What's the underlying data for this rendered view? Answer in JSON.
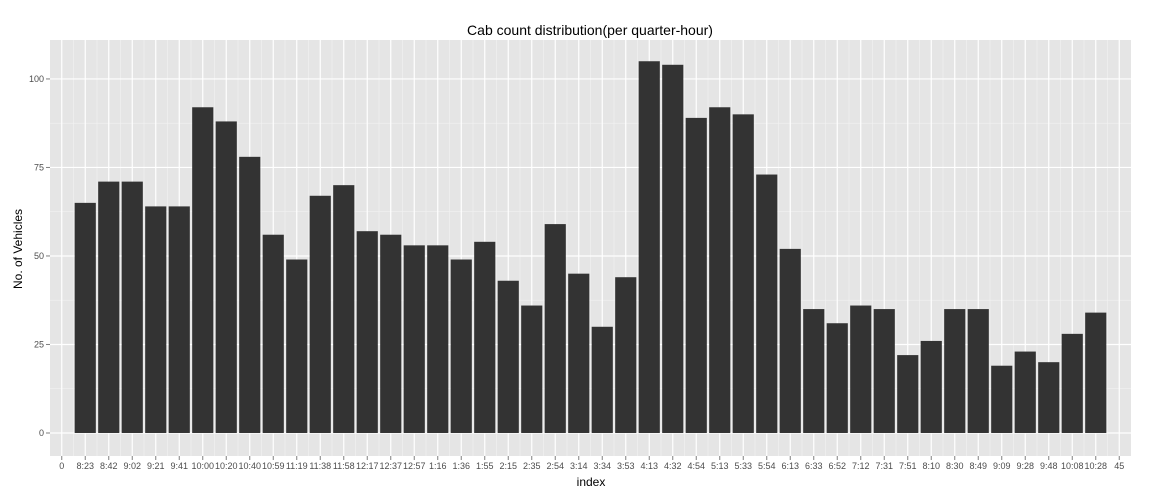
{
  "chart_data": {
    "type": "bar",
    "title": "Cab count distribution(per quarter-hour)",
    "xlabel": "index",
    "ylabel": "No. of Vehicles",
    "x_numeric_ticks": [
      "0",
      "45"
    ],
    "categories": [
      "8:23",
      "8:42",
      "9:02",
      "9:21",
      "9:41",
      "10:00",
      "10:20",
      "10:40",
      "10:59",
      "11:19",
      "11:38",
      "11:58",
      "12:17",
      "12:37",
      "12:57",
      "1:16",
      "1:36",
      "1:55",
      "2:15",
      "2:35",
      "2:54",
      "3:14",
      "3:34",
      "3:53",
      "4:13",
      "4:32",
      "4:54",
      "5:13",
      "5:33",
      "5:54",
      "6:13",
      "6:33",
      "6:52",
      "7:12",
      "7:31",
      "7:51",
      "8:10",
      "8:30",
      "8:49",
      "9:09",
      "9:28",
      "9:48",
      "10:08",
      "10:28"
    ],
    "values": [
      65,
      71,
      71,
      64,
      64,
      92,
      88,
      78,
      56,
      49,
      67,
      70,
      57,
      56,
      53,
      53,
      49,
      54,
      43,
      36,
      59,
      45,
      30,
      44,
      105,
      104,
      89,
      92,
      90,
      73,
      52,
      35,
      31,
      36,
      35,
      22,
      26,
      35,
      35,
      19,
      23,
      20,
      28,
      34
    ],
    "y_ticks": [
      0,
      25,
      50,
      75,
      100
    ],
    "ylim": [
      -6.5,
      111
    ],
    "grid": true,
    "colors": {
      "bar": "#333333",
      "panel": "#e5e5e5",
      "grid_major": "#ffffff",
      "grid_minor": "#f2f2f2",
      "tick_text": "#4d4d4d"
    }
  }
}
